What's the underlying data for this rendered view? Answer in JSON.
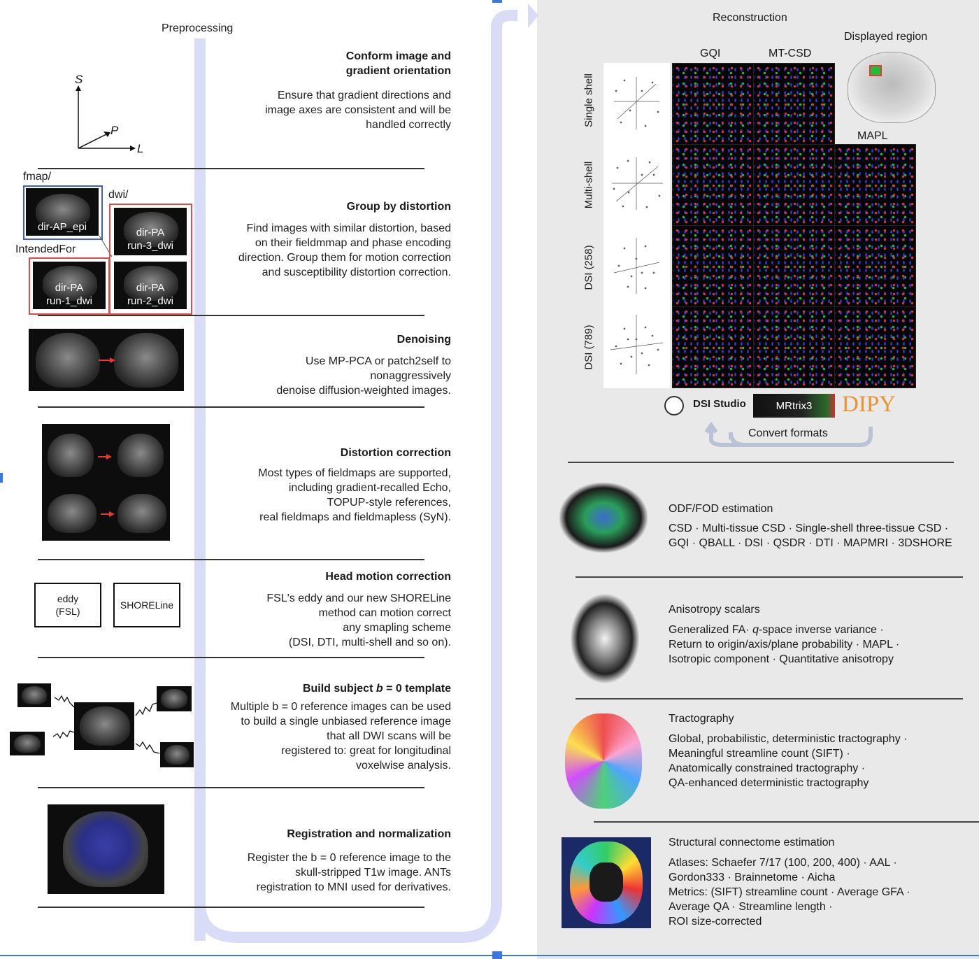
{
  "left": {
    "stage_title": "Preprocessing",
    "axes": {
      "s": "S",
      "p": "P",
      "l": "L"
    },
    "folders": {
      "fmap": "fmap/",
      "dwi": "dwi/",
      "intended_for": "IntendedFor"
    },
    "scans": {
      "ap_epi": "dir-AP_epi",
      "run3": "dir-PA\nrun-3_dwi",
      "run1": "dir-PA\nrun-1_dwi",
      "run2": "dir-PA\nrun-2_dwi"
    },
    "motion_boxes": {
      "eddy": "eddy\n(FSL)",
      "shoreline": "SHORELine"
    },
    "steps": [
      {
        "title": "Conform image and\ngradient orientation",
        "desc": "Ensure that gradient directions and\nimage axes are consistent and will be\nhandled correctly"
      },
      {
        "title": "Group by distortion",
        "desc": "Find images with similar distortion, based\non their fieldmmap and phase encoding\ndirection. Group them for motion correction\nand susceptibility distortion correction."
      },
      {
        "title": "Denoising",
        "desc": "Use MP-PCA or patch2self to\nnonaggressively\ndenoise diffusion-weighted images."
      },
      {
        "title": "Distortion correction",
        "desc": "Most types of fieldmaps are supported,\nincluding gradient-recalled Echo,\nTOPUP-style references,\nreal fieldmaps and fieldmapless (SyN)."
      },
      {
        "title": "Head motion correction",
        "desc": "FSL's eddy and our new SHORELine\nmethod can motion correct\nany smapling scheme\n(DSI, DTI, multi-shell and so on)."
      },
      {
        "title": "Build subject b = 0 template",
        "desc": "Multiple b = 0 reference images can be used\nto build a single unbiased reference image\nthat all DWI scans will be\nregistered to: great for longitudinal\nvoxelwise analysis."
      },
      {
        "title": "Registration and normalization",
        "desc": "Register the b = 0 reference image to the\nskull-stripped T1w image. ANTs\nregistration to MNI used for derivatives."
      }
    ]
  },
  "right": {
    "stage_title": "Reconstruction",
    "displayed_region": "Displayed region",
    "columns": [
      "GQI",
      "MT-CSD",
      "MAPL"
    ],
    "rows": [
      "Single shell",
      "Multi-shell",
      "DSI (258)",
      "DSI (789)"
    ],
    "logos": {
      "dsi_studio": "DSI Studio",
      "mrtrix": "MRtrix3",
      "dipy": "DIPY"
    },
    "convert": "Convert formats",
    "sections": [
      {
        "title": "ODF/FOD estimation",
        "body": "CSD · Multi-tissue CSD · Single-shell three-tissue CSD ·\nGQI · QBALL · DSI · QSDR · DTI · MAPMRI · 3DSHORE"
      },
      {
        "title": "Anisotropy scalars",
        "body": "Generalized FA· q-space inverse variance ·\nReturn to origin/axis/plane probability · MAPL ·\nIsotropic component · Quantitative anisotropy"
      },
      {
        "title": "Tractography",
        "body": "Global, probabilistic, deterministic tractography ·\nMeaningful streamline count (SIFT) ·\nAnatomically constrained tractography ·\nQA-enhanced deterministic tractography"
      },
      {
        "title": "Structural connectome estimation",
        "body": "Atlases: Schaefer 7/17 (100, 200, 400) · AAL ·\nGordon333 · Brainnetome · Aicha\nMetrics: (SIFT) streamline count · Average GFA ·\nAverage QA · Streamline length ·\nROI size-corrected"
      }
    ]
  },
  "colors": {
    "flow": "#d9dcf7",
    "selection": "#3a78e0",
    "red_box": "#e34b4b",
    "blue_box": "#3d5be0",
    "dipy": "#e8932f",
    "panel": "#e9e9e9"
  }
}
